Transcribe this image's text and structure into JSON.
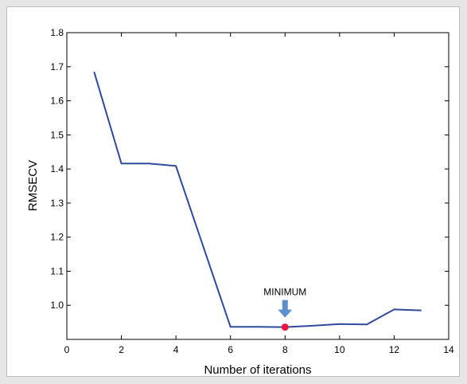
{
  "chart_data": {
    "type": "line",
    "title": "",
    "xlabel": "Number of iterations",
    "ylabel": "RMSECV",
    "xlim": [
      0,
      14
    ],
    "ylim": [
      0.9,
      1.8
    ],
    "xticks": [
      0,
      2,
      4,
      6,
      8,
      10,
      12,
      14
    ],
    "yticks": [
      1.0,
      1.1,
      1.2,
      1.3,
      1.4,
      1.5,
      1.6,
      1.7,
      1.8
    ],
    "ytick_labels": [
      "1.0",
      "1.1",
      "1.2",
      "1.3",
      "1.4",
      "1.5",
      "1.6",
      "1.7",
      "1.8"
    ],
    "grid": false,
    "series": [
      {
        "x": [
          1,
          2,
          3,
          4,
          6,
          7,
          8,
          9,
          10,
          11,
          12,
          13
        ],
        "y": [
          1.685,
          1.416,
          1.416,
          1.409,
          0.937,
          0.937,
          0.936,
          0.94,
          0.945,
          0.944,
          0.988,
          0.985
        ],
        "color": "#2e4a9e"
      }
    ],
    "highlight_point": {
      "x": 8,
      "y": 0.936,
      "color": "#e8153d"
    },
    "annotation": {
      "text": "MINIMUM",
      "x": 8,
      "arrow_color": "#5b8fce"
    }
  }
}
